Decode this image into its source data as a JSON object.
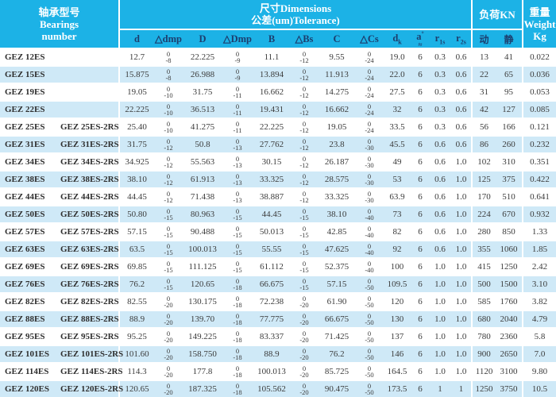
{
  "colors": {
    "accent": "#1cb2e6",
    "stripe": "#cfe9f7",
    "header_text": "#ffffff",
    "column_letter_text": "#1c3e6e"
  },
  "header": {
    "bearings_line1": "轴承型号",
    "bearings_line2": "Bearings",
    "bearings_line3": "number",
    "dims_line1": "尺寸Dimensions",
    "dims_line2": "公差(um)Tolerance)",
    "load_title": "负荷KN",
    "weight_line1": "重量",
    "weight_line2": "Weight",
    "weight_line3": "Kg",
    "columns": [
      {
        "base": "d"
      },
      {
        "base": "△dmp"
      },
      {
        "base": "D"
      },
      {
        "base": "△Dmp"
      },
      {
        "base": "B"
      },
      {
        "base": "△Bs"
      },
      {
        "base": "C"
      },
      {
        "base": "△Cs"
      },
      {
        "base": "d",
        "sub": "k"
      },
      {
        "base": "a",
        "sup": "°",
        "below": "≈"
      },
      {
        "base": "r",
        "sub": "1s"
      },
      {
        "base": "r",
        "sub": "2s"
      },
      {
        "base": "动"
      },
      {
        "base": "静"
      }
    ]
  },
  "rows": [
    {
      "name": "GEZ 12ES",
      "name2": "",
      "d": "12.7",
      "dmp": [
        "0",
        "-8"
      ],
      "D": "22.225",
      "Dmp": [
        "0",
        "-9"
      ],
      "B": "11.1",
      "Bs": [
        "0",
        "-12"
      ],
      "C": "9.55",
      "Cs": [
        "0",
        "-24"
      ],
      "dk": "19.0",
      "a": "6",
      "r1s": "0.3",
      "r2s": "0.6",
      "dyn": "13",
      "stat": "41",
      "weight": "0.022"
    },
    {
      "name": "GEZ 15ES",
      "name2": "",
      "d": "15.875",
      "dmp": [
        "0",
        "-8"
      ],
      "D": "26.988",
      "Dmp": [
        "0",
        "-9"
      ],
      "B": "13.894",
      "Bs": [
        "0",
        "-12"
      ],
      "C": "11.913",
      "Cs": [
        "0",
        "-24"
      ],
      "dk": "22.0",
      "a": "6",
      "r1s": "0.3",
      "r2s": "0.6",
      "dyn": "22",
      "stat": "65",
      "weight": "0.036"
    },
    {
      "name": "GEZ 19ES",
      "name2": "",
      "d": "19.05",
      "dmp": [
        "0",
        "-10"
      ],
      "D": "31.75",
      "Dmp": [
        "0",
        "-11"
      ],
      "B": "16.662",
      "Bs": [
        "0",
        "-12"
      ],
      "C": "14.275",
      "Cs": [
        "0",
        "-24"
      ],
      "dk": "27.5",
      "a": "6",
      "r1s": "0.3",
      "r2s": "0.6",
      "dyn": "31",
      "stat": "95",
      "weight": "0.053"
    },
    {
      "name": "GEZ 22ES",
      "name2": "",
      "d": "22.225",
      "dmp": [
        "0",
        "-10"
      ],
      "D": "36.513",
      "Dmp": [
        "0",
        "-11"
      ],
      "B": "19.431",
      "Bs": [
        "0",
        "-12"
      ],
      "C": "16.662",
      "Cs": [
        "0",
        "-24"
      ],
      "dk": "32",
      "a": "6",
      "r1s": "0.3",
      "r2s": "0.6",
      "dyn": "42",
      "stat": "127",
      "weight": "0.085"
    },
    {
      "name": "GEZ 25ES",
      "name2": "GEZ 25ES-2RS",
      "d": "25.40",
      "dmp": [
        "0",
        "-10"
      ],
      "D": "41.275",
      "Dmp": [
        "0",
        "-11"
      ],
      "B": "22.225",
      "Bs": [
        "0",
        "-12"
      ],
      "C": "19.05",
      "Cs": [
        "0",
        "-24"
      ],
      "dk": "33.5",
      "a": "6",
      "r1s": "0.3",
      "r2s": "0.6",
      "dyn": "56",
      "stat": "166",
      "weight": "0.121"
    },
    {
      "name": "GEZ 31ES",
      "name2": "GEZ 31ES-2RS",
      "d": "31.75",
      "dmp": [
        "0",
        "-12"
      ],
      "D": "50.8",
      "Dmp": [
        "0",
        "-13"
      ],
      "B": "27.762",
      "Bs": [
        "0",
        "-12"
      ],
      "C": "23.8",
      "Cs": [
        "0",
        "-30"
      ],
      "dk": "45.5",
      "a": "6",
      "r1s": "0.6",
      "r2s": "0.6",
      "dyn": "86",
      "stat": "260",
      "weight": "0.232"
    },
    {
      "name": "GEZ 34ES",
      "name2": "GEZ 34ES-2RS",
      "d": "34.925",
      "dmp": [
        "0",
        "-12"
      ],
      "D": "55.563",
      "Dmp": [
        "0",
        "-13"
      ],
      "B": "30.15",
      "Bs": [
        "0",
        "-12"
      ],
      "C": "26.187",
      "Cs": [
        "0",
        "-30"
      ],
      "dk": "49",
      "a": "6",
      "r1s": "0.6",
      "r2s": "1.0",
      "dyn": "102",
      "stat": "310",
      "weight": "0.351"
    },
    {
      "name": "GEZ 38ES",
      "name2": "GEZ 38ES-2RS",
      "d": "38.10",
      "dmp": [
        "0",
        "-12"
      ],
      "D": "61.913",
      "Dmp": [
        "0",
        "-13"
      ],
      "B": "33.325",
      "Bs": [
        "0",
        "-12"
      ],
      "C": "28.575",
      "Cs": [
        "0",
        "-30"
      ],
      "dk": "53",
      "a": "6",
      "r1s": "0.6",
      "r2s": "1.0",
      "dyn": "125",
      "stat": "375",
      "weight": "0.422"
    },
    {
      "name": "GEZ 44ES",
      "name2": "GEZ 44ES-2RS",
      "d": "44.45",
      "dmp": [
        "0",
        "-12"
      ],
      "D": "71.438",
      "Dmp": [
        "0",
        "-13"
      ],
      "B": "38.887",
      "Bs": [
        "0",
        "-12"
      ],
      "C": "33.325",
      "Cs": [
        "0",
        "-30"
      ],
      "dk": "63.9",
      "a": "6",
      "r1s": "0.6",
      "r2s": "1.0",
      "dyn": "170",
      "stat": "510",
      "weight": "0.641"
    },
    {
      "name": "GEZ 50ES",
      "name2": "GEZ 50ES-2RS",
      "d": "50.80",
      "dmp": [
        "0",
        "-15"
      ],
      "D": "80.963",
      "Dmp": [
        "0",
        "-15"
      ],
      "B": "44.45",
      "Bs": [
        "0",
        "-15"
      ],
      "C": "38.10",
      "Cs": [
        "0",
        "-40"
      ],
      "dk": "73",
      "a": "6",
      "r1s": "0.6",
      "r2s": "1.0",
      "dyn": "224",
      "stat": "670",
      "weight": "0.932"
    },
    {
      "name": "GEZ 57ES",
      "name2": "GEZ 57ES-2RS",
      "d": "57.15",
      "dmp": [
        "0",
        "-15"
      ],
      "D": "90.488",
      "Dmp": [
        "0",
        "-15"
      ],
      "B": "50.013",
      "Bs": [
        "0",
        "-15"
      ],
      "C": "42.85",
      "Cs": [
        "0",
        "-40"
      ],
      "dk": "82",
      "a": "6",
      "r1s": "0.6",
      "r2s": "1.0",
      "dyn": "280",
      "stat": "850",
      "weight": "1.33"
    },
    {
      "name": "GEZ 63ES",
      "name2": "GEZ 63ES-2RS",
      "d": "63.5",
      "dmp": [
        "0",
        "-15"
      ],
      "D": "100.013",
      "Dmp": [
        "0",
        "-15"
      ],
      "B": "55.55",
      "Bs": [
        "0",
        "-15"
      ],
      "C": "47.625",
      "Cs": [
        "0",
        "-40"
      ],
      "dk": "92",
      "a": "6",
      "r1s": "0.6",
      "r2s": "1.0",
      "dyn": "355",
      "stat": "1060",
      "weight": "1.85"
    },
    {
      "name": "GEZ 69ES",
      "name2": "GEZ 69ES-2RS",
      "d": "69.85",
      "dmp": [
        "0",
        "-15"
      ],
      "D": "111.125",
      "Dmp": [
        "0",
        "-15"
      ],
      "B": "61.112",
      "Bs": [
        "0",
        "-15"
      ],
      "C": "52.375",
      "Cs": [
        "0",
        "-40"
      ],
      "dk": "100",
      "a": "6",
      "r1s": "1.0",
      "r2s": "1.0",
      "dyn": "415",
      "stat": "1250",
      "weight": "2.42"
    },
    {
      "name": "GEZ 76ES",
      "name2": "GEZ 76ES-2RS",
      "d": "76.2",
      "dmp": [
        "0",
        "-15"
      ],
      "D": "120.65",
      "Dmp": [
        "0",
        "-18"
      ],
      "B": "66.675",
      "Bs": [
        "0",
        "-15"
      ],
      "C": "57.15",
      "Cs": [
        "0",
        "-50"
      ],
      "dk": "109.5",
      "a": "6",
      "r1s": "1.0",
      "r2s": "1.0",
      "dyn": "500",
      "stat": "1500",
      "weight": "3.10"
    },
    {
      "name": "GEZ 82ES",
      "name2": "GEZ 82ES-2RS",
      "d": "82.55",
      "dmp": [
        "0",
        "-20"
      ],
      "D": "130.175",
      "Dmp": [
        "0",
        "-18"
      ],
      "B": "72.238",
      "Bs": [
        "0",
        "-20"
      ],
      "C": "61.90",
      "Cs": [
        "0",
        "-50"
      ],
      "dk": "120",
      "a": "6",
      "r1s": "1.0",
      "r2s": "1.0",
      "dyn": "585",
      "stat": "1760",
      "weight": "3.82"
    },
    {
      "name": "GEZ 88ES",
      "name2": "GEZ 88ES-2RS",
      "d": "88.9",
      "dmp": [
        "0",
        "-20"
      ],
      "D": "139.70",
      "Dmp": [
        "0",
        "-18"
      ],
      "B": "77.775",
      "Bs": [
        "0",
        "-20"
      ],
      "C": "66.675",
      "Cs": [
        "0",
        "-50"
      ],
      "dk": "130",
      "a": "6",
      "r1s": "1.0",
      "r2s": "1.0",
      "dyn": "680",
      "stat": "2040",
      "weight": "4.79"
    },
    {
      "name": "GEZ 95ES",
      "name2": "GEZ 95ES-2RS",
      "d": "95.25",
      "dmp": [
        "0",
        "-20"
      ],
      "D": "149.225",
      "Dmp": [
        "0",
        "-18"
      ],
      "B": "83.337",
      "Bs": [
        "0",
        "-20"
      ],
      "C": "71.425",
      "Cs": [
        "0",
        "-50"
      ],
      "dk": "137",
      "a": "6",
      "r1s": "1.0",
      "r2s": "1.0",
      "dyn": "780",
      "stat": "2360",
      "weight": "5.8"
    },
    {
      "name": "GEZ 101ES",
      "name2": "GEZ 101ES-2RS",
      "d": "101.60",
      "dmp": [
        "0",
        "-20"
      ],
      "D": "158.750",
      "Dmp": [
        "0",
        "-18"
      ],
      "B": "88.9",
      "Bs": [
        "0",
        "-20"
      ],
      "C": "76.2",
      "Cs": [
        "0",
        "-50"
      ],
      "dk": "146",
      "a": "6",
      "r1s": "1.0",
      "r2s": "1.0",
      "dyn": "900",
      "stat": "2650",
      "weight": "7.0"
    },
    {
      "name": "GEZ 114ES",
      "name2": "GEZ 114ES-2RS",
      "d": "114.3",
      "dmp": [
        "0",
        "-20"
      ],
      "D": "177.8",
      "Dmp": [
        "0",
        "-18"
      ],
      "B": "100.013",
      "Bs": [
        "0",
        "-20"
      ],
      "C": "85.725",
      "Cs": [
        "0",
        "-50"
      ],
      "dk": "164.5",
      "a": "6",
      "r1s": "1.0",
      "r2s": "1.0",
      "dyn": "1120",
      "stat": "3100",
      "weight": "9.80"
    },
    {
      "name": "GEZ 120ES",
      "name2": "GEZ 120ES-2RS",
      "d": "120.65",
      "dmp": [
        "0",
        "-20"
      ],
      "D": "187.325",
      "Dmp": [
        "0",
        "-18"
      ],
      "B": "105.562",
      "Bs": [
        "0",
        "-20"
      ],
      "C": "90.475",
      "Cs": [
        "0",
        "-50"
      ],
      "dk": "173.5",
      "a": "6",
      "r1s": "1",
      "r2s": "1",
      "dyn": "1250",
      "stat": "3750",
      "weight": "10.5"
    }
  ]
}
